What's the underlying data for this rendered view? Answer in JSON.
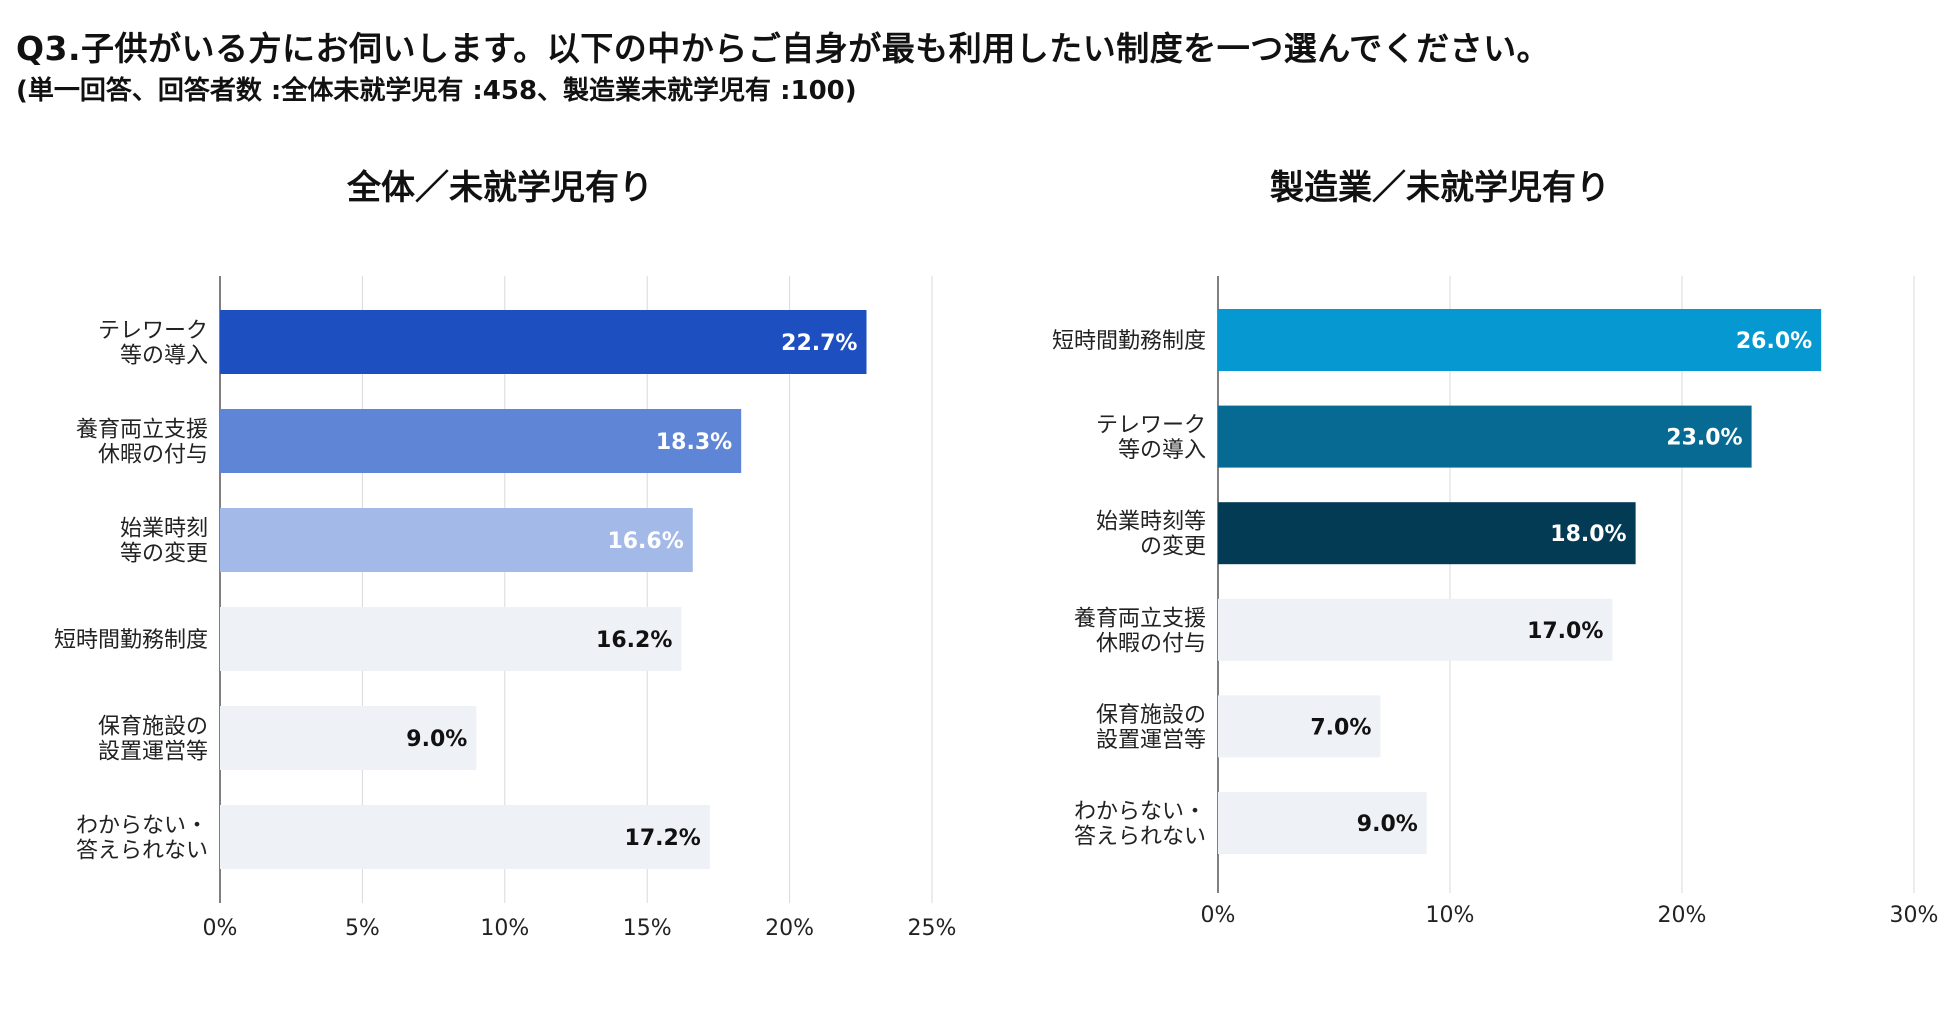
{
  "heading": "Q3.子供がいる方にお伺いします。以下の中からご自身が最も利用したい制度を一つ選んでください。",
  "subheading": "(単一回答、回答者数 :全体未就学児有 :458、製造業未就学児有 :100)",
  "chart_data": [
    {
      "type": "bar",
      "orientation": "horizontal",
      "title": "全体／未就学児有り",
      "categories": [
        "テレワーク\n等の導入",
        "養育両立支援\n休暇の付与",
        "始業時刻\n等の変更",
        "短時間勤務制度",
        "保育施設の\n設置運営等",
        "わからない・\n答えられない"
      ],
      "values": [
        22.7,
        18.3,
        16.6,
        16.2,
        9.0,
        17.2
      ],
      "value_labels": [
        "22.7%",
        "18.3%",
        "16.6%",
        "16.2%",
        "9.0%",
        "17.2%"
      ],
      "colors": [
        "#1d4fc1",
        "#5f86d6",
        "#a3b9e8",
        "#eef1f6",
        "#eef1f6",
        "#eef1f6"
      ],
      "label_colors": [
        "#ffffff",
        "#ffffff",
        "#ffffff",
        "#111111",
        "#111111",
        "#111111"
      ],
      "xlim": [
        0,
        25
      ],
      "ticks": [
        0,
        5,
        10,
        15,
        20,
        25
      ],
      "tick_labels": [
        "0%",
        "5%",
        "10%",
        "15%",
        "20%",
        "25%"
      ],
      "grid": true
    },
    {
      "type": "bar",
      "orientation": "horizontal",
      "title": "製造業／未就学児有り",
      "categories": [
        "短時間勤務制度",
        "テレワーク\n等の導入",
        "始業時刻等\nの変更",
        "養育両立支援\n休暇の付与",
        "保育施設の\n設置運営等",
        "わからない・\n答えられない"
      ],
      "values": [
        26.0,
        23.0,
        18.0,
        17.0,
        7.0,
        9.0
      ],
      "value_labels": [
        "26.0%",
        "23.0%",
        "18.0%",
        "17.0%",
        "7.0%",
        "9.0%"
      ],
      "colors": [
        "#0698d1",
        "#076a93",
        "#033a54",
        "#eef1f6",
        "#eef1f6",
        "#eef1f6"
      ],
      "label_colors": [
        "#ffffff",
        "#ffffff",
        "#ffffff",
        "#111111",
        "#111111",
        "#111111"
      ],
      "xlim": [
        0,
        30
      ],
      "ticks": [
        0,
        10,
        20,
        30
      ],
      "tick_labels": [
        "0%",
        "10%",
        "20%",
        "30%"
      ],
      "grid": true
    }
  ]
}
